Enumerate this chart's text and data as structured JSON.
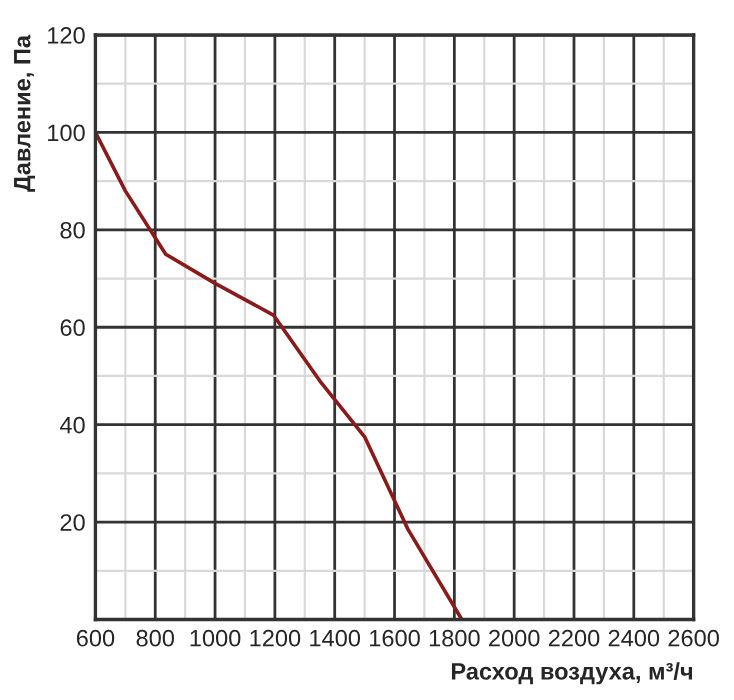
{
  "chart_data": {
    "type": "line",
    "xlabel": "Расход воздуха, м³/ч",
    "ylabel": "Давление, Па",
    "x": [
      600,
      700,
      835,
      1000,
      1195,
      1350,
      1500,
      1645,
      1825
    ],
    "series": [
      {
        "color": "#8b1a1a",
        "values": [
          100,
          88,
          75,
          69,
          62.5,
          49,
          37.5,
          18.5,
          0
        ]
      }
    ],
    "xlim": [
      600,
      2600
    ],
    "ylim": [
      0,
      120
    ],
    "xticks": [
      600,
      800,
      1000,
      1200,
      1400,
      1600,
      1800,
      2000,
      2200,
      2400,
      2600
    ],
    "yticks": [
      {
        "value": 0,
        "label": null
      },
      20,
      40,
      60,
      80,
      100,
      120
    ],
    "grid": true,
    "line_style": "solid",
    "marker": "none"
  }
}
